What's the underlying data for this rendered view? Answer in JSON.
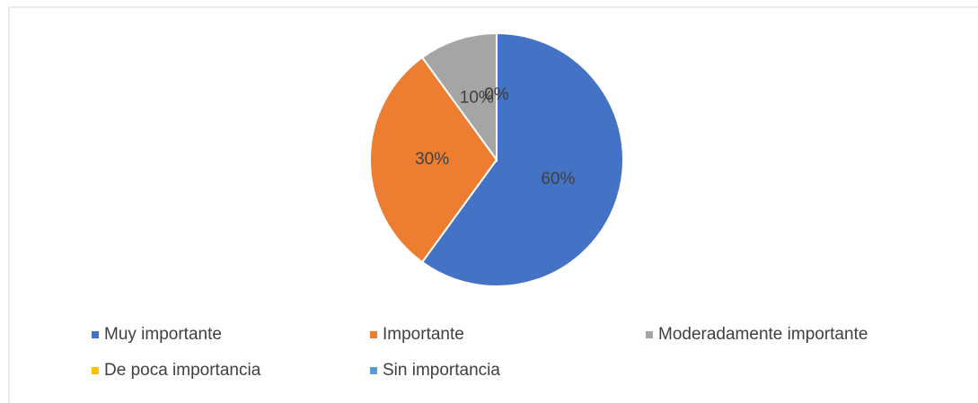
{
  "chart_data": {
    "type": "pie",
    "categories": [
      "Muy importante",
      "Importante",
      "Moderadamente importante",
      "De poca importancia",
      "Sin importancia"
    ],
    "values": [
      60,
      30,
      10,
      0,
      0
    ],
    "value_labels": [
      "60%",
      "30%",
      "10%",
      "0%",
      "0%"
    ],
    "colors": [
      "#4472c4",
      "#ed7d31",
      "#a5a5a5",
      "#ffc000",
      "#5b9bd5"
    ],
    "legend": "bottom"
  }
}
